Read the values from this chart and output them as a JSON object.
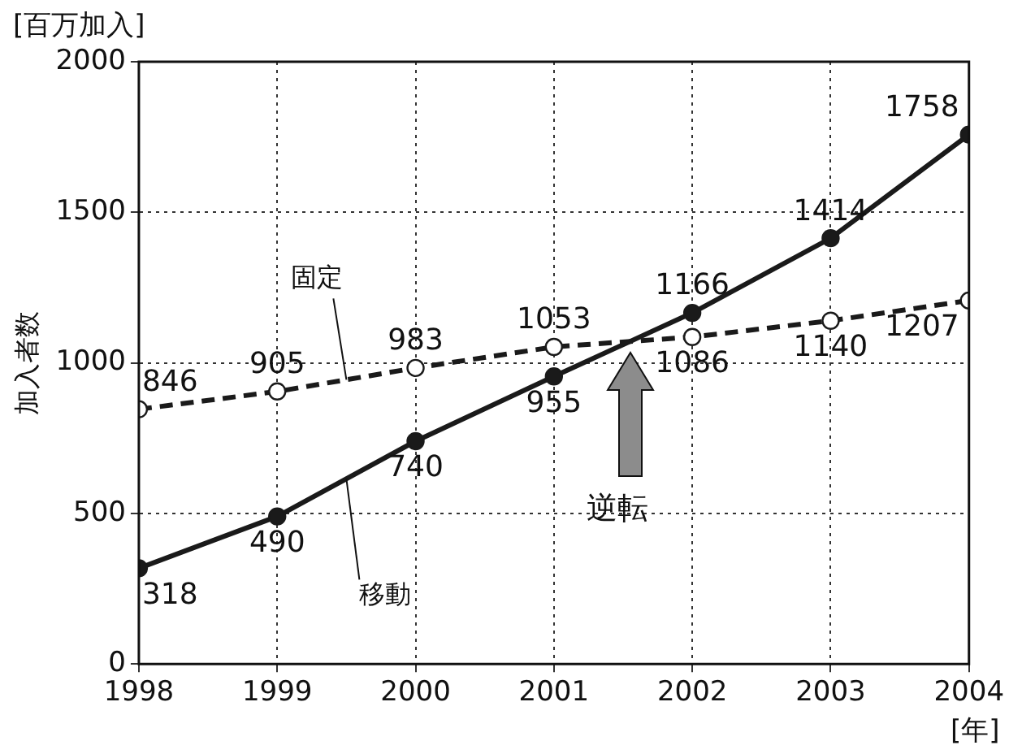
{
  "chart_data": {
    "type": "line",
    "ylabel": "加入者数",
    "annotations": [
      "[百万加入]",
      "[年]",
      "逆転"
    ],
    "x": [
      1998,
      1999,
      2000,
      2001,
      2002,
      2003,
      2004
    ],
    "series": [
      {
        "name": "移動",
        "color": "#1a1a1a",
        "values": [
          318,
          490,
          740,
          955,
          1166,
          1414,
          1758
        ],
        "line_style": "solid",
        "marker": "circle"
      },
      {
        "name": "固定",
        "color": "#1a1a1a",
        "values": [
          846,
          905,
          983,
          1053,
          1086,
          1140,
          1207
        ],
        "line_style": "dashed",
        "marker": "circle"
      }
    ],
    "xlim": [
      1998,
      2004
    ],
    "xticks": [
      1998,
      1999,
      2000,
      2001,
      2002,
      2003,
      2004
    ],
    "ylim": [
      0,
      2000
    ],
    "yticks": [
      0,
      500,
      1000,
      1500,
      2000
    ],
    "grid": true,
    "data_labels": true
  }
}
